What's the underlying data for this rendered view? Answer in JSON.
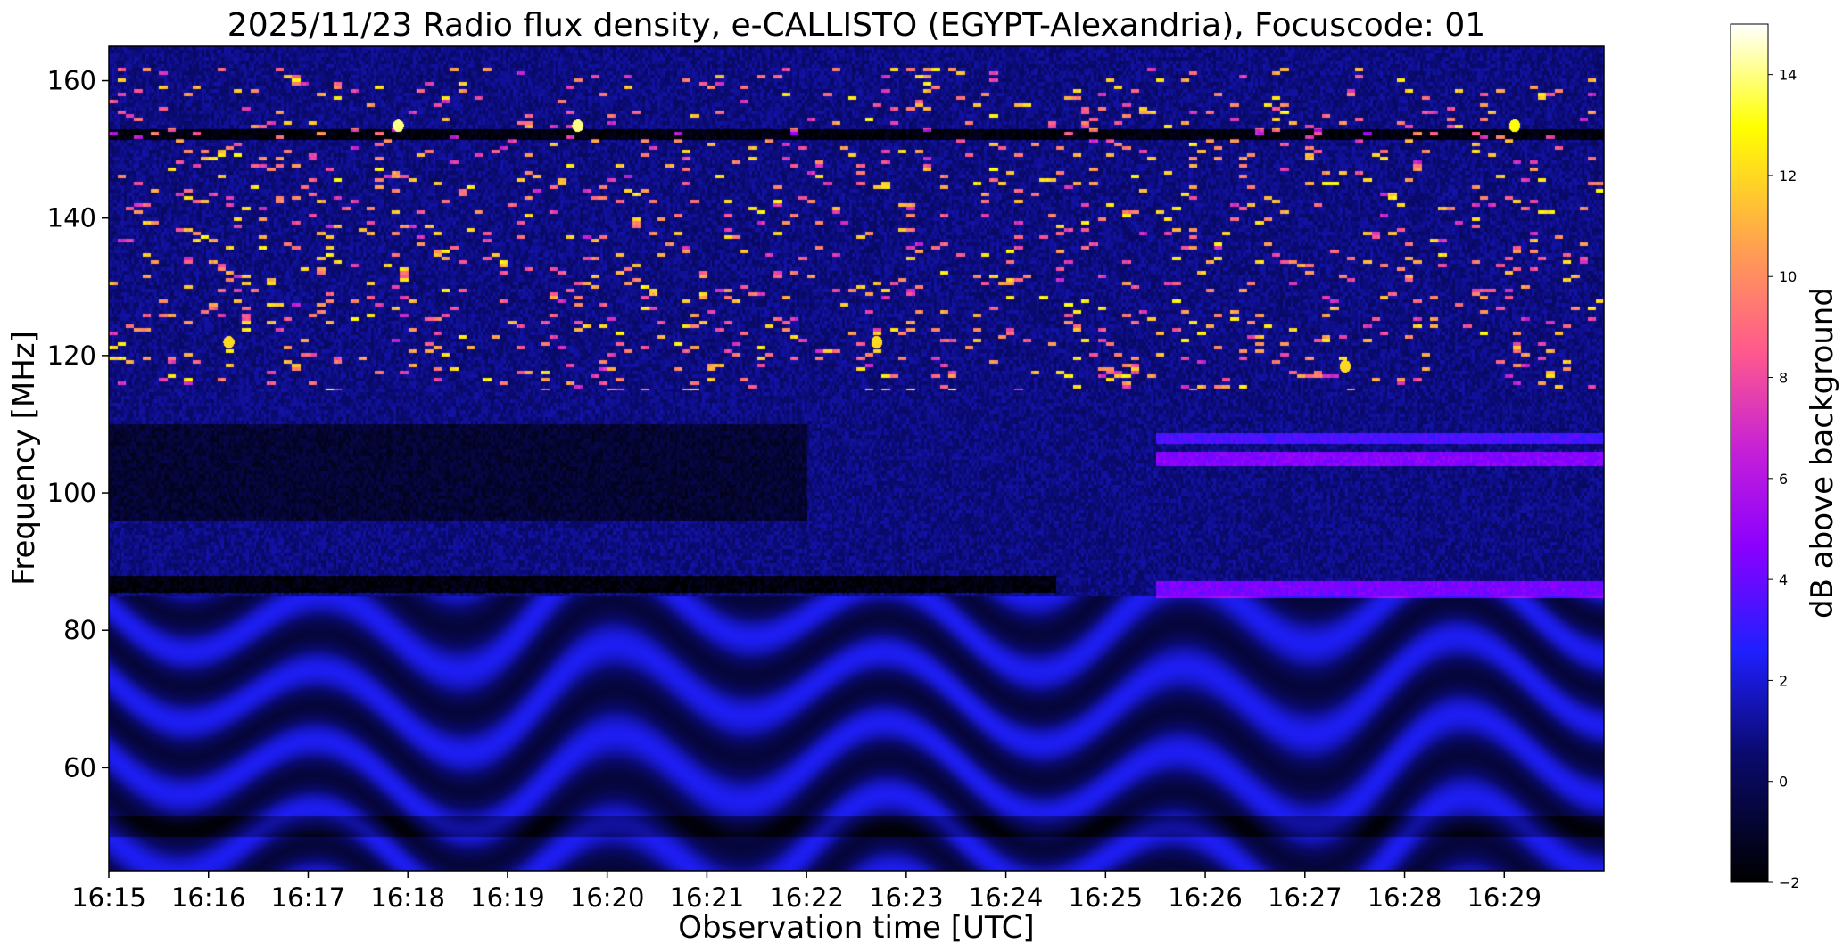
{
  "chart_data": {
    "type": "heatmap",
    "title": "2025/11/23  Radio flux density, e-CALLISTO (EGYPT-Alexandria), Focuscode: 01",
    "xlabel": "Observation time [UTC]",
    "ylabel": "Frequency [MHz]",
    "x_tick_labels": [
      "16:15",
      "16:16",
      "16:17",
      "16:18",
      "16:19",
      "16:20",
      "16:21",
      "16:22",
      "16:23",
      "16:24",
      "16:25",
      "16:26",
      "16:27",
      "16:28",
      "16:29"
    ],
    "y_ticks": [
      60,
      80,
      100,
      120,
      140,
      160
    ],
    "y_tick_labels": [
      "60",
      "80",
      "100",
      "120",
      "140",
      "160"
    ],
    "x_range_minutes": [
      0,
      15
    ],
    "ylim": [
      45,
      165
    ],
    "colorbar": {
      "label": "dB above background",
      "range": [
        -2,
        15
      ],
      "ticks": [
        -2,
        0,
        2,
        4,
        6,
        8,
        10,
        12,
        14
      ],
      "tick_labels": [
        "−2",
        "0",
        "2",
        "4",
        "6",
        "8",
        "10",
        "12",
        "14"
      ],
      "colormap": "gnuplot2"
    },
    "features": {
      "bright_bands_mhz": [
        153,
        127,
        123,
        118.5,
        105,
        86
      ],
      "dark_bands_mhz": [
        152,
        126,
        117,
        111,
        98,
        87,
        52
      ],
      "strongest_spots": [
        {
          "time_min": 4.7,
          "freq_mhz": 153.5,
          "db": 14
        },
        {
          "time_min": 2.9,
          "freq_mhz": 153.5,
          "db": 14
        },
        {
          "time_min": 14.1,
          "freq_mhz": 153.5,
          "db": 13
        },
        {
          "time_min": 1.2,
          "freq_mhz": 122,
          "db": 12
        },
        {
          "time_min": 7.7,
          "freq_mhz": 122,
          "db": 12
        },
        {
          "time_min": 12.4,
          "freq_mhz": 118.5,
          "db": 12
        }
      ]
    }
  }
}
